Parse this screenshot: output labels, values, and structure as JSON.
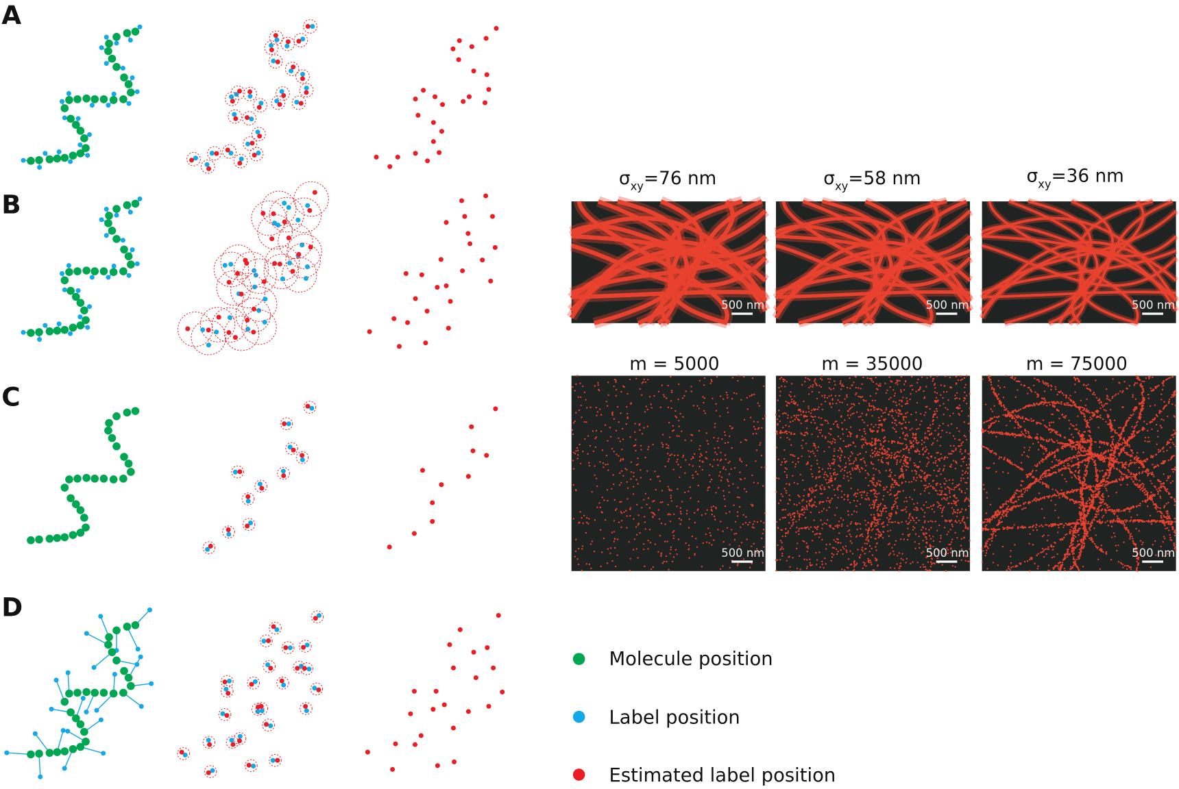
{
  "panel_labels": [
    "A",
    "B",
    "C",
    "D"
  ],
  "colors": {
    "molecule": "#00a651",
    "label": "#13a8e8",
    "estimated": "#ed1c24",
    "image_background": "#1f2422",
    "filament": "#e8422f"
  },
  "sigma_row": [
    {
      "symbol": "σ",
      "subscript": "xy",
      "value": "=76 nm"
    },
    {
      "symbol": "σ",
      "subscript": "xy",
      "value": "=58 nm"
    },
    {
      "symbol": "σ",
      "subscript": "xy",
      "value": "=36 nm"
    }
  ],
  "m_row": [
    {
      "title": "m = 5000"
    },
    {
      "title": "m = 35000"
    },
    {
      "title": "m = 75000"
    }
  ],
  "scale_bar_label": "500 nm",
  "legend": [
    {
      "label": "Molecule position",
      "color_key": "molecule"
    },
    {
      "label": "Label position",
      "color_key": "label"
    },
    {
      "label": "Estimated label position",
      "color_key": "estimated"
    }
  ]
}
